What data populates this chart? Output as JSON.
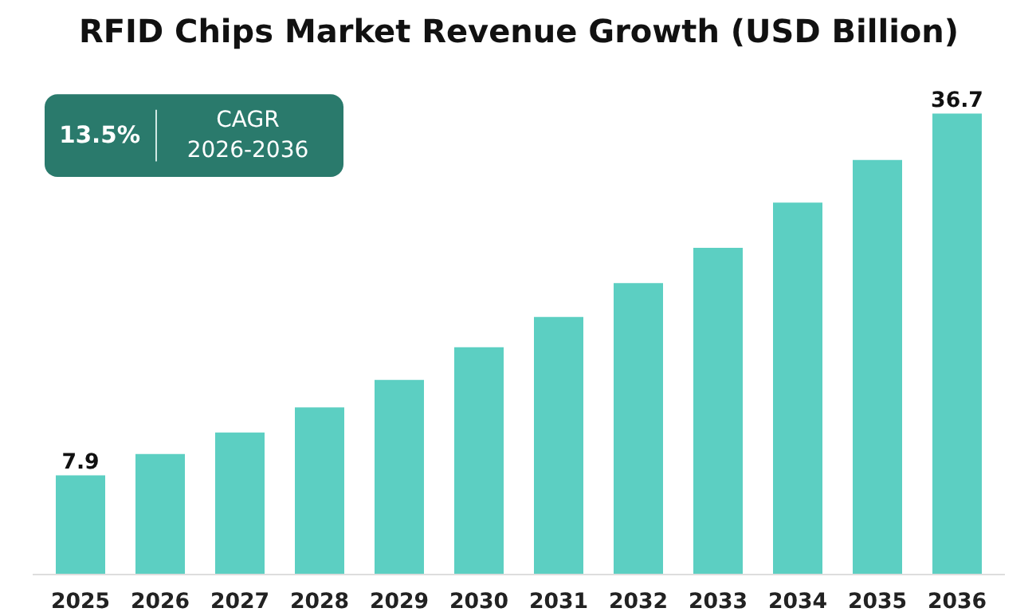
{
  "chart_data": {
    "type": "bar",
    "title": "RFID Chips Market Revenue Growth (USD Billion)",
    "categories": [
      "2025",
      "2026",
      "2027",
      "2028",
      "2029",
      "2030",
      "2031",
      "2032",
      "2033",
      "2034",
      "2035",
      "2036"
    ],
    "values": [
      7.9,
      9.6,
      11.3,
      13.3,
      15.5,
      18.1,
      20.5,
      23.2,
      26.0,
      29.6,
      33.0,
      36.7
    ],
    "value_labels": [
      "7.9",
      null,
      null,
      null,
      null,
      null,
      null,
      null,
      null,
      null,
      null,
      "36.7"
    ],
    "color": "#5ccfc2",
    "tick_labels": "x",
    "grid": false,
    "annotations": [
      "13.5%",
      "CAGR\n2026-2036"
    ]
  }
}
